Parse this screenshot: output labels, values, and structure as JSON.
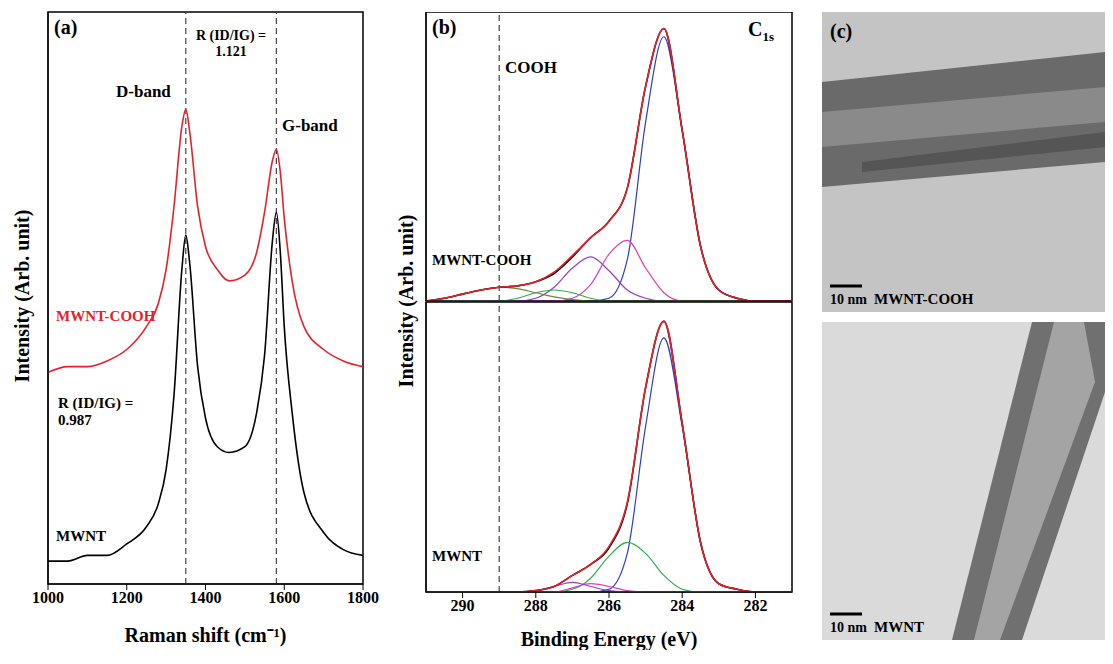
{
  "chart_data": [
    {
      "type": "line",
      "panel": "(a)",
      "x_label": "Raman shift (cm⁻¹)",
      "y_label": "Intensity (Arb. unit)",
      "x": [
        1000,
        1050,
        1100,
        1150,
        1200,
        1250,
        1280,
        1300,
        1320,
        1340,
        1350,
        1360,
        1380,
        1400,
        1430,
        1460,
        1500,
        1530,
        1550,
        1570,
        1580,
        1590,
        1600,
        1620,
        1650,
        1700,
        1750,
        1800
      ],
      "xlim": [
        1000,
        1800
      ],
      "xticks": [
        1000,
        1200,
        1400,
        1600,
        1800
      ],
      "ylim": [
        0,
        100
      ],
      "tick_labels": "x",
      "reference_lines": [
        1350,
        1580
      ],
      "band_labels": [
        "D-band",
        "G-band"
      ],
      "ratio_label": "R (ID/IG) =",
      "ratios": [
        1.121,
        0.987
      ],
      "series": [
        {
          "name": "MWNT-COOH",
          "color": "#e8202a",
          "values": [
            37,
            38,
            38,
            39,
            41,
            45,
            49,
            55,
            66,
            80,
            83,
            79,
            66,
            59,
            55,
            53,
            54,
            58,
            65,
            74,
            76,
            72,
            64,
            53,
            45,
            41,
            39,
            38
          ]
        },
        {
          "name": "MWNT",
          "color": "#000000",
          "values": [
            4,
            4,
            5,
            5,
            7,
            10,
            14,
            20,
            33,
            55,
            61,
            56,
            38,
            29,
            24,
            23,
            24,
            30,
            40,
            60,
            65,
            58,
            45,
            30,
            16,
            9,
            6,
            5
          ]
        }
      ]
    },
    {
      "type": "line",
      "panel": "(b)",
      "title": "C1s",
      "y_label": "Intensity (Arb. unit)",
      "label": "MWNT-COOH",
      "x": [
        291,
        290.5,
        290,
        289.5,
        289,
        288.5,
        288,
        287.5,
        287,
        286.5,
        286,
        285.5,
        285,
        284.5,
        284,
        283.5,
        283,
        282.5,
        282,
        281.5,
        281
      ],
      "xlim": [
        291,
        281
      ],
      "xticks": [
        290,
        288,
        286,
        284,
        282
      ],
      "ylim": [
        0,
        105
      ],
      "tick_labels": false,
      "reference_lines": [
        289
      ],
      "reference_labels": [
        "COOH"
      ],
      "series": [
        {
          "color": "#2a3fc8",
          "values": [
            0,
            0,
            0,
            0,
            0,
            0,
            0,
            0,
            0,
            0,
            1,
            15,
            65,
            96,
            62,
            20,
            4,
            1,
            0,
            0,
            0
          ]
        },
        {
          "color": "#e040b8",
          "values": [
            0,
            0,
            0,
            0,
            0,
            0,
            0,
            0,
            1,
            6,
            17,
            22,
            12,
            3,
            0,
            0,
            0,
            0,
            0,
            0,
            0
          ]
        },
        {
          "color": "#9a3cc8",
          "values": [
            0,
            0,
            0,
            0,
            0,
            0,
            1,
            5,
            12,
            16,
            11,
            4,
            1,
            0,
            0,
            0,
            0,
            0,
            0,
            0,
            0
          ]
        },
        {
          "color": "#2fb04a",
          "values": [
            0,
            0,
            0,
            0,
            0,
            1,
            3,
            4,
            3,
            1,
            0,
            0,
            0,
            0,
            0,
            0,
            0,
            0,
            0,
            0,
            0
          ]
        },
        {
          "color": "#6b8a3a",
          "values": [
            0,
            1,
            2.5,
            4,
            5,
            4.5,
            3,
            1.5,
            0.5,
            0,
            0,
            0,
            0,
            0,
            0,
            0,
            0,
            0,
            0,
            0,
            0
          ]
        },
        {
          "color": "#000000",
          "values": [
            0,
            1,
            2.5,
            4,
            5,
            5.5,
            7,
            10,
            16,
            23,
            29,
            41,
            78,
            99,
            62,
            20,
            4,
            1,
            0,
            0,
            0
          ]
        },
        {
          "color": "#e8202a",
          "values": [
            0,
            1,
            2.5,
            4,
            5,
            5.5,
            7,
            10.5,
            16.5,
            23,
            29,
            41,
            78,
            99,
            62,
            20,
            4,
            1,
            0,
            0,
            0
          ]
        }
      ]
    },
    {
      "type": "line",
      "x_label": "Binding Energy (eV)",
      "label": "MWNT",
      "x": [
        291,
        290.5,
        290,
        289.5,
        289,
        288.5,
        288,
        287.5,
        287,
        286.5,
        286,
        285.5,
        285,
        284.5,
        284,
        283.5,
        283,
        282.5,
        282,
        281.5,
        281
      ],
      "xlim": [
        291,
        281
      ],
      "xticks": [
        290,
        288,
        286,
        284,
        282
      ],
      "ylim": [
        0,
        105
      ],
      "tick_labels": "x",
      "reference_lines": [
        289
      ],
      "series": [
        {
          "color": "#2a3fc8",
          "values": [
            0,
            0,
            0,
            0,
            0,
            0,
            0,
            0,
            0,
            0,
            1,
            14,
            60,
            92,
            60,
            18,
            3,
            1,
            0,
            0,
            0
          ]
        },
        {
          "color": "#2fb04a",
          "values": [
            0,
            0,
            0,
            0,
            0,
            0,
            0,
            0,
            1,
            5,
            13,
            18,
            14,
            6,
            1,
            0,
            0,
            0,
            0,
            0,
            0
          ]
        },
        {
          "color": "#e040b8",
          "values": [
            0,
            0,
            0,
            0,
            0,
            0,
            0,
            0,
            1.5,
            3,
            2,
            0.5,
            0,
            0,
            0,
            0,
            0,
            0,
            0,
            0,
            0
          ]
        },
        {
          "color": "#9a3cc8",
          "values": [
            0,
            0,
            0,
            0,
            0,
            0,
            0.5,
            2,
            3.5,
            2,
            0.5,
            0,
            0,
            0,
            0,
            0,
            0,
            0,
            0,
            0,
            0
          ]
        },
        {
          "color": "#000000",
          "values": [
            0,
            0,
            0,
            0,
            0,
            0,
            0.5,
            2,
            6,
            10,
            16,
            32,
            74,
            98,
            61,
            18,
            3,
            1,
            0,
            0,
            0
          ]
        },
        {
          "color": "#e8202a",
          "values": [
            0,
            0,
            0,
            0,
            0,
            0,
            0.5,
            2,
            6,
            10,
            16.5,
            32.5,
            74,
            98,
            61,
            18,
            3,
            1,
            0,
            0,
            0
          ]
        }
      ]
    }
  ],
  "images": [
    {
      "panel": "(c)",
      "scale_bar": "10 nm",
      "label": "MWNT-COOH"
    },
    {
      "scale_bar": "10 nm",
      "label": "MWNT"
    }
  ]
}
